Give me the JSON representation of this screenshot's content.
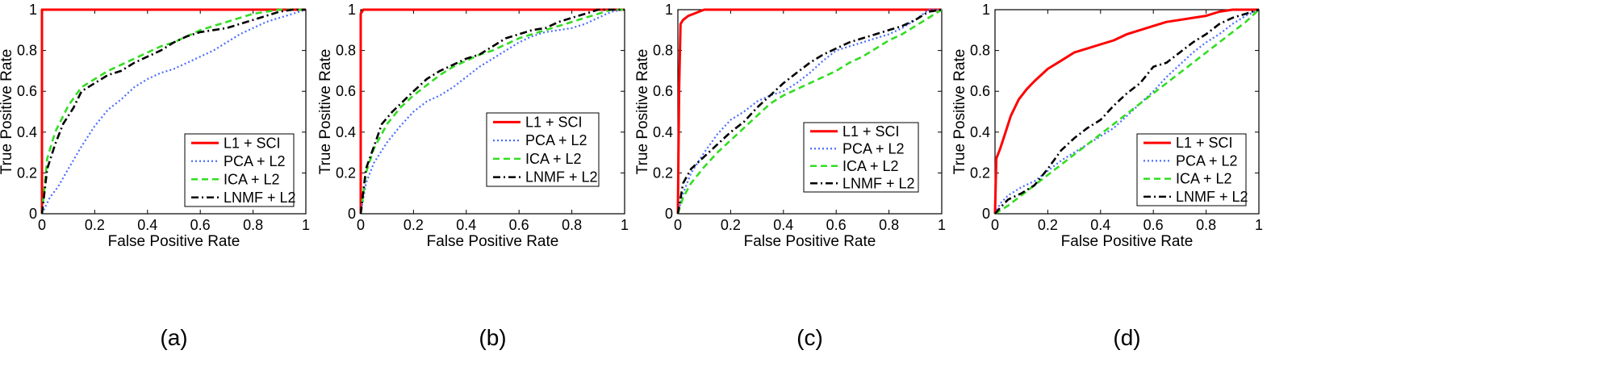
{
  "chart_data": [
    {
      "type": "line",
      "caption": "(a)",
      "xlabel": "False Positive Rate",
      "ylabel": "True Positive Rate",
      "xlim": [
        0,
        1
      ],
      "ylim": [
        0,
        1
      ],
      "xticks": [
        "0",
        "0.2",
        "0.4",
        "0.6",
        "0.8",
        "1"
      ],
      "yticks": [
        "0",
        "0.2",
        "0.4",
        "0.6",
        "0.8",
        "1"
      ],
      "legend_position": "bottom-right",
      "series": [
        {
          "name": "L1 + SCI",
          "color": "#ff0000",
          "style": "solid",
          "x": [
            0,
            0,
            1
          ],
          "y": [
            0,
            1,
            1
          ]
        },
        {
          "name": "PCA + L2",
          "color": "#4a6cff",
          "style": "dotted",
          "x": [
            0,
            0.03,
            0.06,
            0.1,
            0.15,
            0.2,
            0.25,
            0.3,
            0.35,
            0.4,
            0.45,
            0.5,
            0.55,
            0.6,
            0.65,
            0.7,
            0.75,
            0.8,
            0.85,
            0.9,
            0.95,
            1
          ],
          "y": [
            0,
            0.08,
            0.13,
            0.22,
            0.33,
            0.43,
            0.51,
            0.56,
            0.62,
            0.66,
            0.69,
            0.71,
            0.74,
            0.77,
            0.8,
            0.84,
            0.88,
            0.91,
            0.94,
            0.96,
            0.98,
            1
          ]
        },
        {
          "name": "ICA + L2",
          "color": "#33dd22",
          "style": "dashed",
          "x": [
            0,
            0.02,
            0.05,
            0.1,
            0.15,
            0.2,
            0.25,
            0.3,
            0.35,
            0.4,
            0.45,
            0.5,
            0.55,
            0.6,
            0.65,
            0.7,
            0.75,
            0.8,
            0.85,
            0.9,
            0.95,
            1
          ],
          "y": [
            0,
            0.27,
            0.4,
            0.53,
            0.62,
            0.66,
            0.7,
            0.73,
            0.76,
            0.79,
            0.82,
            0.84,
            0.87,
            0.9,
            0.92,
            0.94,
            0.96,
            0.98,
            0.99,
            1,
            1,
            1
          ]
        },
        {
          "name": "LNMF + L2",
          "color": "#000000",
          "style": "dashdot",
          "x": [
            0,
            0.02,
            0.05,
            0.08,
            0.12,
            0.15,
            0.2,
            0.25,
            0.3,
            0.35,
            0.4,
            0.45,
            0.5,
            0.55,
            0.6,
            0.65,
            0.7,
            0.75,
            0.8,
            0.85,
            0.9,
            0.95,
            1
          ],
          "y": [
            0,
            0.22,
            0.34,
            0.44,
            0.52,
            0.6,
            0.64,
            0.68,
            0.7,
            0.74,
            0.77,
            0.8,
            0.84,
            0.87,
            0.89,
            0.9,
            0.91,
            0.93,
            0.95,
            0.97,
            0.99,
            1,
            1
          ]
        }
      ]
    },
    {
      "type": "line",
      "caption": "(b)",
      "xlabel": "False Positive Rate",
      "ylabel": "True Positive Rate",
      "xlim": [
        0,
        1
      ],
      "ylim": [
        0,
        1
      ],
      "xticks": [
        "0",
        "0.2",
        "0.4",
        "0.6",
        "0.8",
        "1"
      ],
      "yticks": [
        "0",
        "0.2",
        "0.4",
        "0.6",
        "0.8",
        "1"
      ],
      "legend_position": "right",
      "series": [
        {
          "name": "L1 + SCI",
          "color": "#ff0000",
          "style": "solid",
          "x": [
            0,
            0,
            0.01,
            1
          ],
          "y": [
            0,
            0.98,
            1,
            1
          ]
        },
        {
          "name": "PCA + L2",
          "color": "#4a6cff",
          "style": "dotted",
          "x": [
            0,
            0.02,
            0.05,
            0.1,
            0.15,
            0.2,
            0.25,
            0.3,
            0.35,
            0.4,
            0.45,
            0.5,
            0.55,
            0.6,
            0.65,
            0.7,
            0.75,
            0.8,
            0.85,
            0.9,
            0.95,
            1
          ],
          "y": [
            0,
            0.15,
            0.25,
            0.35,
            0.43,
            0.5,
            0.55,
            0.58,
            0.62,
            0.67,
            0.72,
            0.76,
            0.8,
            0.84,
            0.87,
            0.89,
            0.9,
            0.91,
            0.93,
            0.96,
            0.99,
            1
          ]
        },
        {
          "name": "ICA + L2",
          "color": "#33dd22",
          "style": "dashed",
          "x": [
            0,
            0.02,
            0.05,
            0.1,
            0.15,
            0.2,
            0.25,
            0.3,
            0.35,
            0.4,
            0.45,
            0.5,
            0.55,
            0.6,
            0.65,
            0.7,
            0.75,
            0.8,
            0.85,
            0.9,
            0.95,
            1
          ],
          "y": [
            0,
            0.2,
            0.32,
            0.44,
            0.52,
            0.58,
            0.63,
            0.68,
            0.72,
            0.75,
            0.78,
            0.8,
            0.83,
            0.86,
            0.88,
            0.9,
            0.92,
            0.94,
            0.96,
            0.98,
            1,
            1
          ]
        },
        {
          "name": "LNMF + L2",
          "color": "#000000",
          "style": "dashdot",
          "x": [
            0,
            0.02,
            0.05,
            0.08,
            0.12,
            0.16,
            0.2,
            0.25,
            0.3,
            0.35,
            0.4,
            0.45,
            0.5,
            0.55,
            0.6,
            0.65,
            0.7,
            0.75,
            0.8,
            0.85,
            0.9,
            0.95,
            1
          ],
          "y": [
            0,
            0.22,
            0.33,
            0.44,
            0.5,
            0.55,
            0.6,
            0.66,
            0.7,
            0.73,
            0.76,
            0.78,
            0.82,
            0.86,
            0.88,
            0.9,
            0.91,
            0.94,
            0.96,
            0.98,
            1,
            1,
            1
          ]
        }
      ]
    },
    {
      "type": "line",
      "caption": "(c)",
      "xlabel": "False Positive Rate",
      "ylabel": "True Positive Rate",
      "xlim": [
        0,
        1
      ],
      "ylim": [
        0,
        1
      ],
      "xticks": [
        "0",
        "0.2",
        "0.4",
        "0.6",
        "0.8",
        "1"
      ],
      "yticks": [
        "0",
        "0.2",
        "0.4",
        "0.6",
        "0.8",
        "1"
      ],
      "legend_position": "right",
      "series": [
        {
          "name": "L1 + SCI",
          "color": "#ff0000",
          "style": "solid",
          "x": [
            0,
            0.005,
            0.01,
            0.02,
            0.04,
            0.06,
            0.08,
            0.1,
            0.2,
            0.3,
            0.4,
            0.5,
            0.6,
            0.7,
            0.8,
            0.9,
            0.95,
            1
          ],
          "y": [
            0,
            0.62,
            0.93,
            0.95,
            0.97,
            0.98,
            0.99,
            1,
            1,
            1,
            1,
            1,
            1,
            1,
            1,
            1,
            1,
            1
          ]
        },
        {
          "name": "PCA + L2",
          "color": "#4a6cff",
          "style": "dotted",
          "x": [
            0,
            0.02,
            0.05,
            0.1,
            0.15,
            0.2,
            0.25,
            0.3,
            0.35,
            0.4,
            0.45,
            0.5,
            0.55,
            0.6,
            0.65,
            0.7,
            0.75,
            0.8,
            0.85,
            0.9,
            0.95,
            1
          ],
          "y": [
            0,
            0.1,
            0.2,
            0.3,
            0.39,
            0.46,
            0.5,
            0.55,
            0.58,
            0.6,
            0.64,
            0.69,
            0.75,
            0.8,
            0.82,
            0.84,
            0.86,
            0.88,
            0.91,
            0.95,
            1,
            1
          ]
        },
        {
          "name": "ICA + L2",
          "color": "#33dd22",
          "style": "dashed",
          "x": [
            0,
            0.02,
            0.05,
            0.1,
            0.15,
            0.2,
            0.25,
            0.3,
            0.35,
            0.4,
            0.45,
            0.5,
            0.55,
            0.6,
            0.65,
            0.7,
            0.75,
            0.8,
            0.85,
            0.9,
            0.95,
            1
          ],
          "y": [
            0,
            0.08,
            0.15,
            0.23,
            0.3,
            0.36,
            0.42,
            0.48,
            0.54,
            0.58,
            0.61,
            0.64,
            0.67,
            0.7,
            0.74,
            0.77,
            0.81,
            0.85,
            0.88,
            0.92,
            0.96,
            1
          ]
        },
        {
          "name": "LNMF + L2",
          "color": "#000000",
          "style": "dashdot",
          "x": [
            0,
            0.02,
            0.05,
            0.1,
            0.15,
            0.2,
            0.25,
            0.3,
            0.35,
            0.4,
            0.45,
            0.5,
            0.55,
            0.6,
            0.65,
            0.7,
            0.75,
            0.8,
            0.85,
            0.9,
            0.95,
            1
          ],
          "y": [
            0,
            0.15,
            0.22,
            0.28,
            0.34,
            0.4,
            0.45,
            0.52,
            0.58,
            0.64,
            0.69,
            0.74,
            0.78,
            0.81,
            0.84,
            0.86,
            0.88,
            0.9,
            0.92,
            0.95,
            0.99,
            1
          ]
        }
      ]
    },
    {
      "type": "line",
      "caption": "(d)",
      "xlabel": "False Positive Rate",
      "ylabel": "True Positive Rate",
      "xlim": [
        0,
        1
      ],
      "ylim": [
        0,
        1
      ],
      "xticks": [
        "0",
        "0.2",
        "0.4",
        "0.6",
        "0.8",
        "1"
      ],
      "yticks": [
        "0",
        "0.2",
        "0.4",
        "0.6",
        "0.8",
        "1"
      ],
      "legend_position": "bottom-right",
      "series": [
        {
          "name": "L1 + SCI",
          "color": "#ff0000",
          "style": "solid",
          "x": [
            0,
            0.005,
            0.02,
            0.04,
            0.06,
            0.09,
            0.12,
            0.15,
            0.2,
            0.25,
            0.3,
            0.35,
            0.4,
            0.45,
            0.5,
            0.55,
            0.6,
            0.65,
            0.7,
            0.75,
            0.8,
            0.85,
            0.9,
            0.95,
            1
          ],
          "y": [
            0,
            0.27,
            0.32,
            0.4,
            0.48,
            0.56,
            0.61,
            0.65,
            0.71,
            0.75,
            0.79,
            0.81,
            0.83,
            0.85,
            0.88,
            0.9,
            0.92,
            0.94,
            0.95,
            0.96,
            0.97,
            0.99,
            1,
            1,
            1
          ]
        },
        {
          "name": "PCA + L2",
          "color": "#4a6cff",
          "style": "dotted",
          "x": [
            0,
            0.02,
            0.05,
            0.1,
            0.15,
            0.2,
            0.25,
            0.3,
            0.35,
            0.4,
            0.45,
            0.5,
            0.55,
            0.6,
            0.65,
            0.7,
            0.75,
            0.8,
            0.85,
            0.9,
            0.95,
            1
          ],
          "y": [
            0,
            0.05,
            0.09,
            0.13,
            0.16,
            0.21,
            0.26,
            0.3,
            0.34,
            0.38,
            0.42,
            0.48,
            0.54,
            0.6,
            0.67,
            0.73,
            0.79,
            0.84,
            0.88,
            0.93,
            0.97,
            1
          ]
        },
        {
          "name": "ICA + L2",
          "color": "#33dd22",
          "style": "dashed",
          "x": [
            0,
            0.05,
            0.1,
            0.15,
            0.2,
            0.25,
            0.3,
            0.35,
            0.4,
            0.45,
            0.5,
            0.55,
            0.6,
            0.65,
            0.7,
            0.75,
            0.8,
            0.85,
            0.9,
            0.95,
            1
          ],
          "y": [
            0,
            0.04,
            0.09,
            0.14,
            0.19,
            0.24,
            0.29,
            0.34,
            0.39,
            0.44,
            0.49,
            0.54,
            0.59,
            0.64,
            0.69,
            0.74,
            0.79,
            0.84,
            0.89,
            0.94,
            1
          ]
        },
        {
          "name": "LNMF + L2",
          "color": "#000000",
          "style": "dashdot",
          "x": [
            0,
            0.02,
            0.05,
            0.1,
            0.15,
            0.2,
            0.25,
            0.3,
            0.35,
            0.4,
            0.45,
            0.5,
            0.55,
            0.6,
            0.65,
            0.7,
            0.75,
            0.8,
            0.85,
            0.9,
            0.95,
            1
          ],
          "y": [
            0,
            0.03,
            0.07,
            0.1,
            0.14,
            0.22,
            0.31,
            0.37,
            0.42,
            0.46,
            0.53,
            0.59,
            0.64,
            0.72,
            0.74,
            0.79,
            0.84,
            0.88,
            0.93,
            0.96,
            0.98,
            1
          ]
        }
      ]
    }
  ]
}
